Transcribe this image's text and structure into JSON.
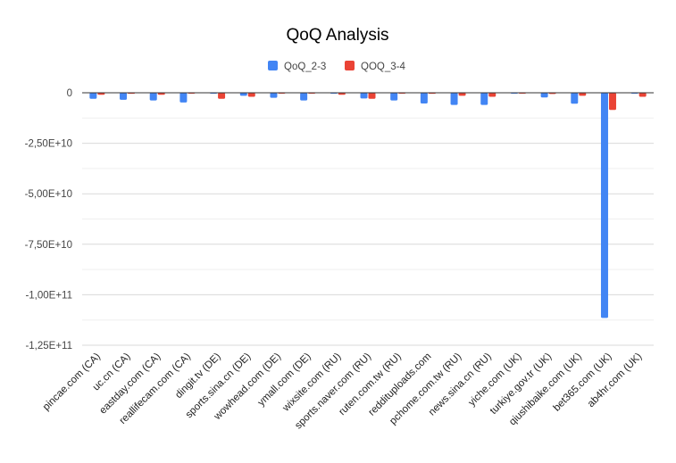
{
  "chart_data": {
    "type": "bar",
    "title": "QoQ Analysis",
    "xlabel": "",
    "ylabel": "",
    "ylim": [
      -125000000000,
      0
    ],
    "yticks": [
      0,
      -25000000000,
      -50000000000,
      -75000000000,
      -100000000000,
      -125000000000
    ],
    "ytick_labels": [
      "0",
      "-2,50E+10",
      "-5,00E+10",
      "-7,50E+10",
      "-1,00E+11",
      "-1,25E+11"
    ],
    "grid": true,
    "legend_position": "top",
    "categories": [
      "pincae.com (CA)",
      "uc.cn (CA)",
      "eastday.com (CA)",
      "reallifecam.com (CA)",
      "dingit.tv (DE)",
      "sports.sina.cn (DE)",
      "wowhead.com (DE)",
      "ymall.com (DE)",
      "wixsite.com (RU)",
      "sports.naver.com (RU)",
      "ruten.com.tw (RU)",
      "reddituploads.com",
      "pchome.com.tw (RU)",
      "news.sina.cn (RU)",
      "yiche.com (UK)",
      "turkiye.gov.tr (UK)",
      "qiushibaike.com (UK)",
      "bet365.com (UK)",
      "ab4hr.com (UK)"
    ],
    "series": [
      {
        "name": "QoQ_2-3",
        "color": "#4285f4",
        "values": [
          -3000000000,
          -3500000000,
          -3800000000,
          -4800000000,
          -300000000,
          -1500000000,
          -2500000000,
          -3800000000,
          -400000000,
          -2800000000,
          -3800000000,
          -5300000000,
          -6000000000,
          -6000000000,
          -200000000,
          -2300000000,
          -5400000000,
          -111500000000,
          -300000000
        ]
      },
      {
        "name": "QOQ_3-4",
        "color": "#ea4335",
        "values": [
          -1000000000,
          -500000000,
          -1000000000,
          -200000000,
          -3000000000,
          -2000000000,
          -100000000,
          -200000000,
          -1000000000,
          -3000000000,
          -300000000,
          -500000000,
          -1500000000,
          -2000000000,
          -400000000,
          -600000000,
          -1500000000,
          -8500000000,
          -2000000000
        ]
      }
    ]
  }
}
